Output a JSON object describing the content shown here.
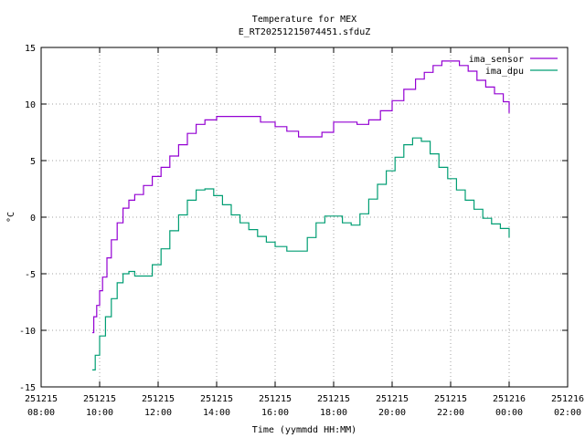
{
  "chart_data": {
    "type": "line",
    "title": "Temperature for MEX",
    "subtitle": "E_RT20251215074451.sfduZ",
    "xlabel": "Time (yymmdd HH:MM)",
    "ylabel": "°C",
    "xlim": [
      8,
      26
    ],
    "ylim": [
      -15,
      15
    ],
    "grid": true,
    "legend_position": "top-right",
    "x_ticks": [
      {
        "value": 8,
        "date": "251215",
        "time": "08:00"
      },
      {
        "value": 10,
        "date": "251215",
        "time": "10:00"
      },
      {
        "value": 12,
        "date": "251215",
        "time": "12:00"
      },
      {
        "value": 14,
        "date": "251215",
        "time": "14:00"
      },
      {
        "value": 16,
        "date": "251215",
        "time": "16:00"
      },
      {
        "value": 18,
        "date": "251215",
        "time": "18:00"
      },
      {
        "value": 20,
        "date": "251215",
        "time": "20:00"
      },
      {
        "value": 22,
        "date": "251215",
        "time": "22:00"
      },
      {
        "value": 24,
        "date": "251216",
        "time": "00:00"
      },
      {
        "value": 26,
        "date": "251216",
        "time": "02:00"
      }
    ],
    "y_ticks": [
      {
        "value": 15,
        "label": "15"
      },
      {
        "value": 10,
        "label": "10"
      },
      {
        "value": 5,
        "label": "5"
      },
      {
        "value": 0,
        "label": "0"
      },
      {
        "value": -5,
        "label": "-5"
      },
      {
        "value": -10,
        "label": "-10"
      },
      {
        "value": -15,
        "label": "-15"
      }
    ],
    "series": [
      {
        "name": "ima_sensor",
        "color": "#9400d3",
        "x": [
          9.75,
          9.8,
          9.9,
          10.0,
          10.1,
          10.25,
          10.4,
          10.6,
          10.8,
          11.0,
          11.2,
          11.5,
          11.8,
          12.1,
          12.4,
          12.7,
          13.0,
          13.3,
          13.6,
          14.0,
          14.5,
          15.0,
          15.5,
          16.0,
          16.4,
          16.8,
          17.2,
          17.6,
          18.0,
          18.4,
          18.8,
          19.2,
          19.6,
          20.0,
          20.4,
          20.8,
          21.1,
          21.4,
          21.7,
          22.0,
          22.3,
          22.6,
          22.9,
          23.2,
          23.5,
          23.8,
          24.0
        ],
        "y": [
          -10.2,
          -8.8,
          -7.8,
          -6.5,
          -5.3,
          -3.6,
          -2.0,
          -0.5,
          0.8,
          1.5,
          2.0,
          2.8,
          3.6,
          4.4,
          5.4,
          6.4,
          7.4,
          8.2,
          8.6,
          8.9,
          8.9,
          8.9,
          8.4,
          8.0,
          7.6,
          7.1,
          7.1,
          7.5,
          8.4,
          8.4,
          8.2,
          8.6,
          9.4,
          10.3,
          11.3,
          12.2,
          12.8,
          13.4,
          13.8,
          13.8,
          13.4,
          12.9,
          12.1,
          11.5,
          10.9,
          10.2,
          9.2
        ]
      },
      {
        "name": "ima_dpu",
        "color": "#009e73",
        "x": [
          9.75,
          9.85,
          10.0,
          10.2,
          10.4,
          10.6,
          10.8,
          11.0,
          11.2,
          11.5,
          11.8,
          12.1,
          12.4,
          12.7,
          13.0,
          13.3,
          13.6,
          13.9,
          14.2,
          14.5,
          14.8,
          15.1,
          15.4,
          15.7,
          16.0,
          16.4,
          16.8,
          17.1,
          17.4,
          17.7,
          18.0,
          18.3,
          18.6,
          18.9,
          19.2,
          19.5,
          19.8,
          20.1,
          20.4,
          20.7,
          21.0,
          21.3,
          21.6,
          21.9,
          22.2,
          22.5,
          22.8,
          23.1,
          23.4,
          23.7,
          24.0
        ],
        "y": [
          -13.5,
          -12.2,
          -10.5,
          -8.8,
          -7.2,
          -5.8,
          -5.0,
          -4.8,
          -5.2,
          -5.2,
          -4.2,
          -2.8,
          -1.2,
          0.2,
          1.5,
          2.4,
          2.5,
          1.9,
          1.1,
          0.2,
          -0.5,
          -1.1,
          -1.7,
          -2.2,
          -2.6,
          -3.0,
          -3.0,
          -1.8,
          -0.5,
          0.1,
          0.1,
          -0.5,
          -0.7,
          0.3,
          1.6,
          2.9,
          4.1,
          5.3,
          6.4,
          7.0,
          6.7,
          5.6,
          4.4,
          3.4,
          2.4,
          1.5,
          0.7,
          -0.1,
          -0.6,
          -1.0,
          -1.8
        ]
      }
    ]
  }
}
